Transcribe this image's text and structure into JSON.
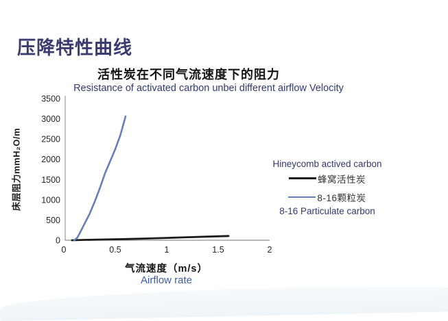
{
  "slide": {
    "title": "压降特性曲线",
    "title_color": "#3c3b6e"
  },
  "chart": {
    "title_zh": "活性炭在不同气流速度下的阻力",
    "subtitle_en": "Resistance of activated carbon unbei different airflow Velocity",
    "y_axis_label": "床层阻力mmH₂O/m",
    "x_axis_label_zh": "气流速度（m/s）",
    "x_axis_label_en": "Airflow rate",
    "legend": {
      "series1_en": "Hineycomb actived carbon",
      "series1_zh": "蜂窝活性炭",
      "series2_zh": "8-16颗粒炭",
      "series2_en": "8-16 Particulate carbon"
    }
  },
  "chart_data": {
    "type": "line",
    "title": "活性炭在不同气流速度下的阻力 (Resistance of activated carbon unbei different airflow Velocity)",
    "xlabel": "气流速度（m/s）/ Airflow rate",
    "ylabel": "床层阻力mmH₂O/m",
    "xlim": [
      0,
      2
    ],
    "ylim": [
      0,
      3500
    ],
    "x_ticks": [
      "0",
      "0.5",
      "1",
      "1.5",
      "2"
    ],
    "y_ticks": [
      0,
      500,
      1000,
      1500,
      2000,
      2500,
      3000,
      3500
    ],
    "grid": false,
    "legend_position": "right",
    "axis_color": "#a0a0a0",
    "series": [
      {
        "name": "蜂窝活性炭 (Hineycomb actived carbon)",
        "color": "#1a1a1a",
        "stroke_width": 2.8,
        "points": [
          [
            0.08,
            0
          ],
          [
            0.2,
            8
          ],
          [
            0.4,
            18
          ],
          [
            0.6,
            28
          ],
          [
            0.8,
            42
          ],
          [
            1.0,
            58
          ],
          [
            1.2,
            75
          ],
          [
            1.4,
            90
          ],
          [
            1.6,
            105
          ]
        ]
      },
      {
        "name": "8-16颗粒炭 (8-16 Particulate carbon)",
        "color": "#6580b8",
        "stroke_width": 2.6,
        "points": [
          [
            0.1,
            0
          ],
          [
            0.13,
            60
          ],
          [
            0.15,
            150
          ],
          [
            0.2,
            400
          ],
          [
            0.25,
            650
          ],
          [
            0.3,
            950
          ],
          [
            0.35,
            1285
          ],
          [
            0.4,
            1650
          ],
          [
            0.45,
            1950
          ],
          [
            0.5,
            2250
          ],
          [
            0.55,
            2600
          ],
          [
            0.6,
            3060
          ]
        ]
      }
    ]
  }
}
